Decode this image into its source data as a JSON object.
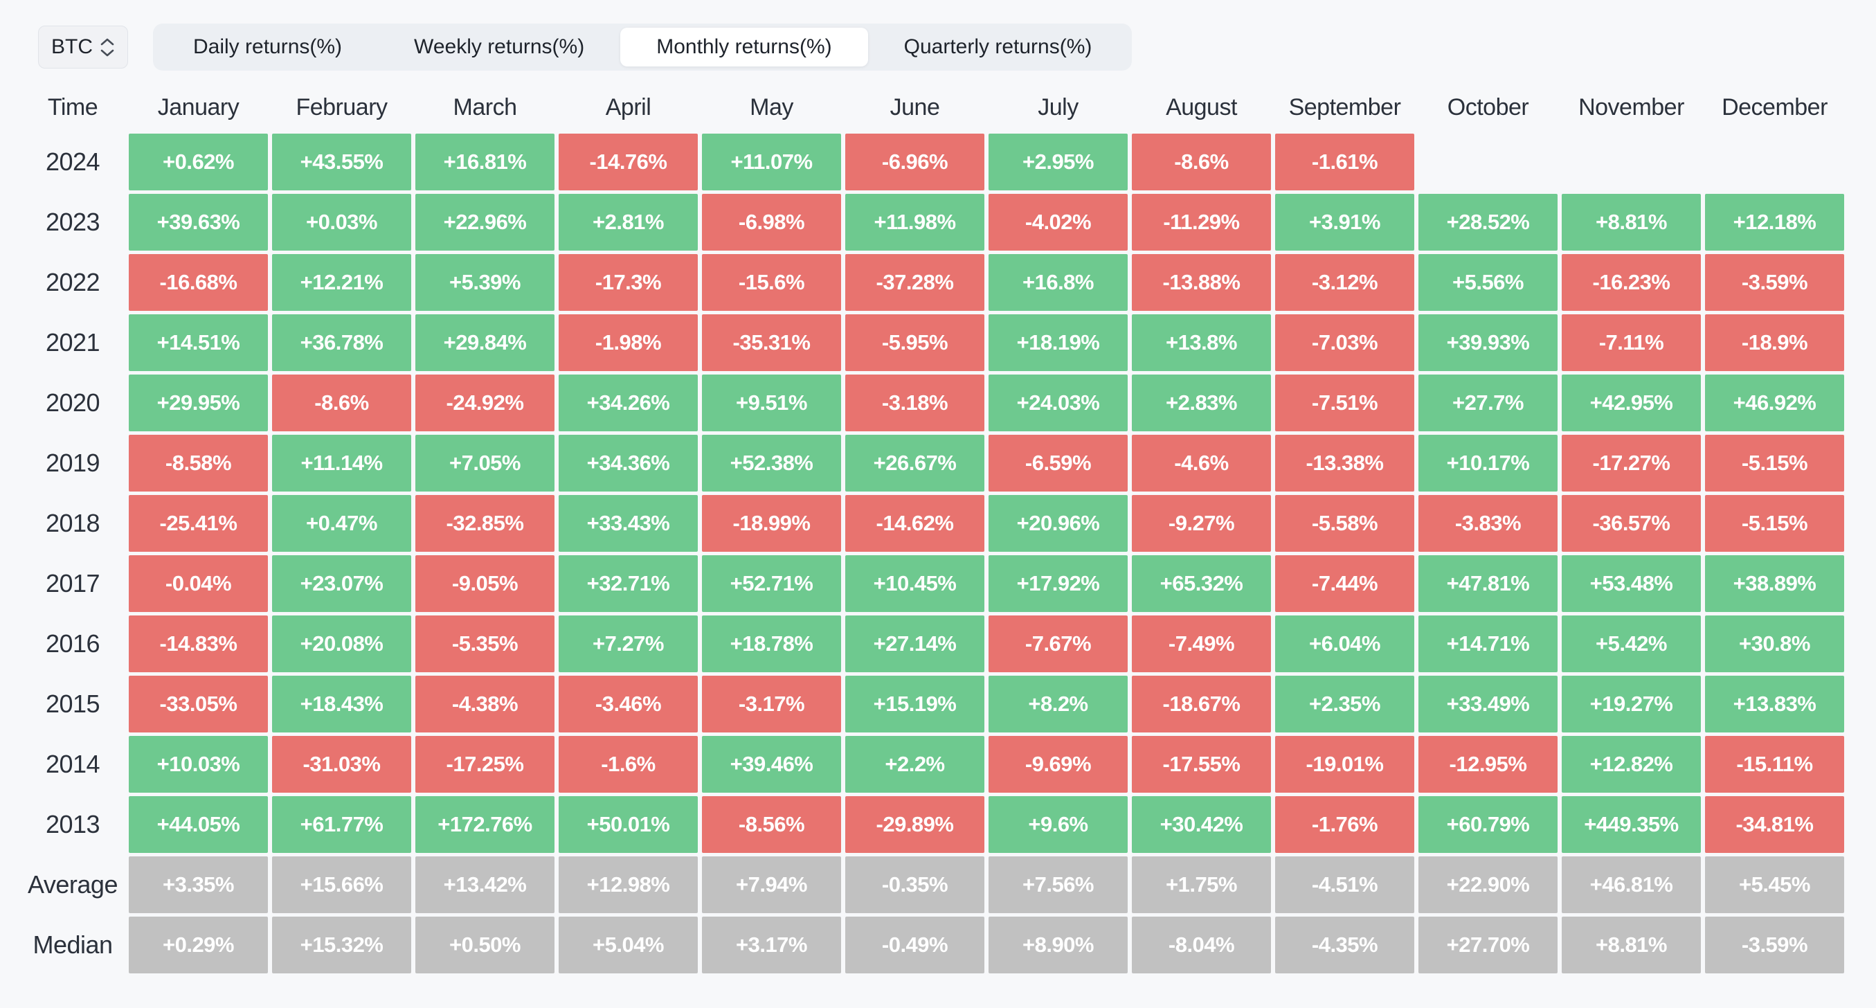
{
  "selector": {
    "value": "BTC",
    "icon": "chevron-up-down"
  },
  "tabs": [
    {
      "label": "Daily returns(%)",
      "active": false
    },
    {
      "label": "Weekly returns(%)",
      "active": false
    },
    {
      "label": "Monthly returns(%)",
      "active": true
    },
    {
      "label": "Quarterly returns(%)",
      "active": false
    }
  ],
  "colors": {
    "positive": "#6ec98f",
    "negative": "#e8736f",
    "summary": "#c1c1c1"
  },
  "table": {
    "time_header": "Time",
    "months": [
      "January",
      "February",
      "March",
      "April",
      "May",
      "June",
      "July",
      "August",
      "September",
      "October",
      "November",
      "December"
    ],
    "rows": [
      {
        "label": "2024",
        "type": "year",
        "values": [
          "+0.62%",
          "+43.55%",
          "+16.81%",
          "-14.76%",
          "+11.07%",
          "-6.96%",
          "+2.95%",
          "-8.6%",
          "-1.61%",
          null,
          null,
          null
        ]
      },
      {
        "label": "2023",
        "type": "year",
        "values": [
          "+39.63%",
          "+0.03%",
          "+22.96%",
          "+2.81%",
          "-6.98%",
          "+11.98%",
          "-4.02%",
          "-11.29%",
          "+3.91%",
          "+28.52%",
          "+8.81%",
          "+12.18%"
        ]
      },
      {
        "label": "2022",
        "type": "year",
        "values": [
          "-16.68%",
          "+12.21%",
          "+5.39%",
          "-17.3%",
          "-15.6%",
          "-37.28%",
          "+16.8%",
          "-13.88%",
          "-3.12%",
          "+5.56%",
          "-16.23%",
          "-3.59%"
        ]
      },
      {
        "label": "2021",
        "type": "year",
        "values": [
          "+14.51%",
          "+36.78%",
          "+29.84%",
          "-1.98%",
          "-35.31%",
          "-5.95%",
          "+18.19%",
          "+13.8%",
          "-7.03%",
          "+39.93%",
          "-7.11%",
          "-18.9%"
        ]
      },
      {
        "label": "2020",
        "type": "year",
        "values": [
          "+29.95%",
          "-8.6%",
          "-24.92%",
          "+34.26%",
          "+9.51%",
          "-3.18%",
          "+24.03%",
          "+2.83%",
          "-7.51%",
          "+27.7%",
          "+42.95%",
          "+46.92%"
        ]
      },
      {
        "label": "2019",
        "type": "year",
        "values": [
          "-8.58%",
          "+11.14%",
          "+7.05%",
          "+34.36%",
          "+52.38%",
          "+26.67%",
          "-6.59%",
          "-4.6%",
          "-13.38%",
          "+10.17%",
          "-17.27%",
          "-5.15%"
        ]
      },
      {
        "label": "2018",
        "type": "year",
        "values": [
          "-25.41%",
          "+0.47%",
          "-32.85%",
          "+33.43%",
          "-18.99%",
          "-14.62%",
          "+20.96%",
          "-9.27%",
          "-5.58%",
          "-3.83%",
          "-36.57%",
          "-5.15%"
        ]
      },
      {
        "label": "2017",
        "type": "year",
        "values": [
          "-0.04%",
          "+23.07%",
          "-9.05%",
          "+32.71%",
          "+52.71%",
          "+10.45%",
          "+17.92%",
          "+65.32%",
          "-7.44%",
          "+47.81%",
          "+53.48%",
          "+38.89%"
        ]
      },
      {
        "label": "2016",
        "type": "year",
        "values": [
          "-14.83%",
          "+20.08%",
          "-5.35%",
          "+7.27%",
          "+18.78%",
          "+27.14%",
          "-7.67%",
          "-7.49%",
          "+6.04%",
          "+14.71%",
          "+5.42%",
          "+30.8%"
        ]
      },
      {
        "label": "2015",
        "type": "year",
        "values": [
          "-33.05%",
          "+18.43%",
          "-4.38%",
          "-3.46%",
          "-3.17%",
          "+15.19%",
          "+8.2%",
          "-18.67%",
          "+2.35%",
          "+33.49%",
          "+19.27%",
          "+13.83%"
        ]
      },
      {
        "label": "2014",
        "type": "year",
        "values": [
          "+10.03%",
          "-31.03%",
          "-17.25%",
          "-1.6%",
          "+39.46%",
          "+2.2%",
          "-9.69%",
          "-17.55%",
          "-19.01%",
          "-12.95%",
          "+12.82%",
          "-15.11%"
        ]
      },
      {
        "label": "2013",
        "type": "year",
        "values": [
          "+44.05%",
          "+61.77%",
          "+172.76%",
          "+50.01%",
          "-8.56%",
          "-29.89%",
          "+9.6%",
          "+30.42%",
          "-1.76%",
          "+60.79%",
          "+449.35%",
          "-34.81%"
        ]
      },
      {
        "label": "Average",
        "type": "summary",
        "values": [
          "+3.35%",
          "+15.66%",
          "+13.42%",
          "+12.98%",
          "+7.94%",
          "-0.35%",
          "+7.56%",
          "+1.75%",
          "-4.51%",
          "+22.90%",
          "+46.81%",
          "+5.45%"
        ]
      },
      {
        "label": "Median",
        "type": "summary",
        "values": [
          "+0.29%",
          "+15.32%",
          "+0.50%",
          "+5.04%",
          "+3.17%",
          "-0.49%",
          "+8.90%",
          "-8.04%",
          "-4.35%",
          "+27.70%",
          "+8.81%",
          "-3.59%"
        ]
      }
    ]
  }
}
